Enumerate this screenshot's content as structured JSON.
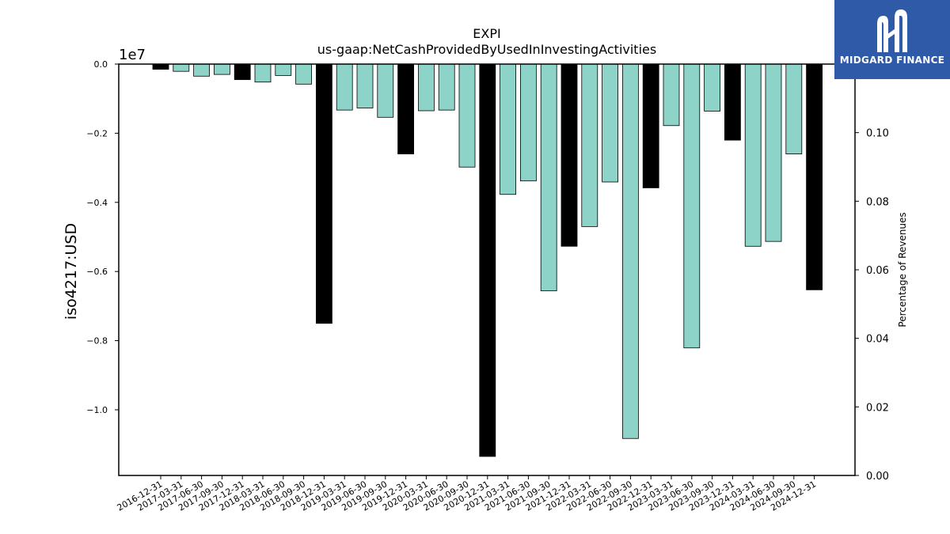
{
  "brand": {
    "name": "MIDGARD FINANCE"
  },
  "chart_data": {
    "type": "bar",
    "title": "EXPI",
    "subtitle": "us-gaap:NetCashProvidedByUsedInInvestingActivities",
    "ylabel": "iso4217:USD",
    "y_offset_label": "1e7",
    "y2label": "Percentage of Revenues",
    "ylim": [
      -1.19,
      0.0
    ],
    "y2lim": [
      0.0,
      0.12
    ],
    "yticks": [
      "0.0",
      "−0.2",
      "−0.4",
      "−0.6",
      "−0.8",
      "−1.0"
    ],
    "yticks_values": [
      0.0,
      -0.2,
      -0.4,
      -0.6,
      -0.8,
      -1.0
    ],
    "y2ticks": [
      "0.00",
      "0.02",
      "0.04",
      "0.06",
      "0.08",
      "0.10"
    ],
    "y2ticks_values": [
      0.0,
      0.02,
      0.04,
      0.06,
      0.08,
      0.1
    ],
    "colors": {
      "annual": "#000000",
      "quarterly": "#8dd3c7",
      "edge": "#000000"
    },
    "categories": [
      "2016-12-31",
      "2017-03-31",
      "2017-06-30",
      "2017-09-30",
      "2017-12-31",
      "2018-03-31",
      "2018-06-30",
      "2018-09-30",
      "2018-12-31",
      "2019-03-31",
      "2019-06-30",
      "2019-09-30",
      "2019-12-31",
      "2020-03-31",
      "2020-06-30",
      "2020-09-30",
      "2020-12-31",
      "2021-03-31",
      "2021-06-30",
      "2021-09-30",
      "2021-12-31",
      "2022-03-31",
      "2022-06-30",
      "2022-09-30",
      "2022-12-31",
      "2023-03-31",
      "2023-06-30",
      "2023-09-30",
      "2023-12-31",
      "2024-03-31",
      "2024-06-30",
      "2024-09-30",
      "2024-12-31"
    ],
    "values": [
      -0.015,
      -0.021,
      -0.035,
      -0.03,
      -0.045,
      -0.052,
      -0.033,
      -0.058,
      -0.75,
      -0.133,
      -0.127,
      -0.154,
      -0.26,
      -0.135,
      -0.133,
      -0.298,
      -1.135,
      -0.377,
      -0.338,
      -0.656,
      -0.527,
      -0.47,
      -0.341,
      -1.083,
      -0.358,
      -0.178,
      -0.821,
      -0.136,
      -0.22,
      -0.527,
      -0.513,
      -0.26,
      -0.653
    ],
    "period": [
      "annual",
      "quarterly",
      "quarterly",
      "quarterly",
      "annual",
      "quarterly",
      "quarterly",
      "quarterly",
      "annual",
      "quarterly",
      "quarterly",
      "quarterly",
      "annual",
      "quarterly",
      "quarterly",
      "quarterly",
      "annual",
      "quarterly",
      "quarterly",
      "quarterly",
      "annual",
      "quarterly",
      "quarterly",
      "quarterly",
      "annual",
      "quarterly",
      "quarterly",
      "quarterly",
      "annual",
      "quarterly",
      "quarterly",
      "quarterly",
      "annual"
    ]
  }
}
